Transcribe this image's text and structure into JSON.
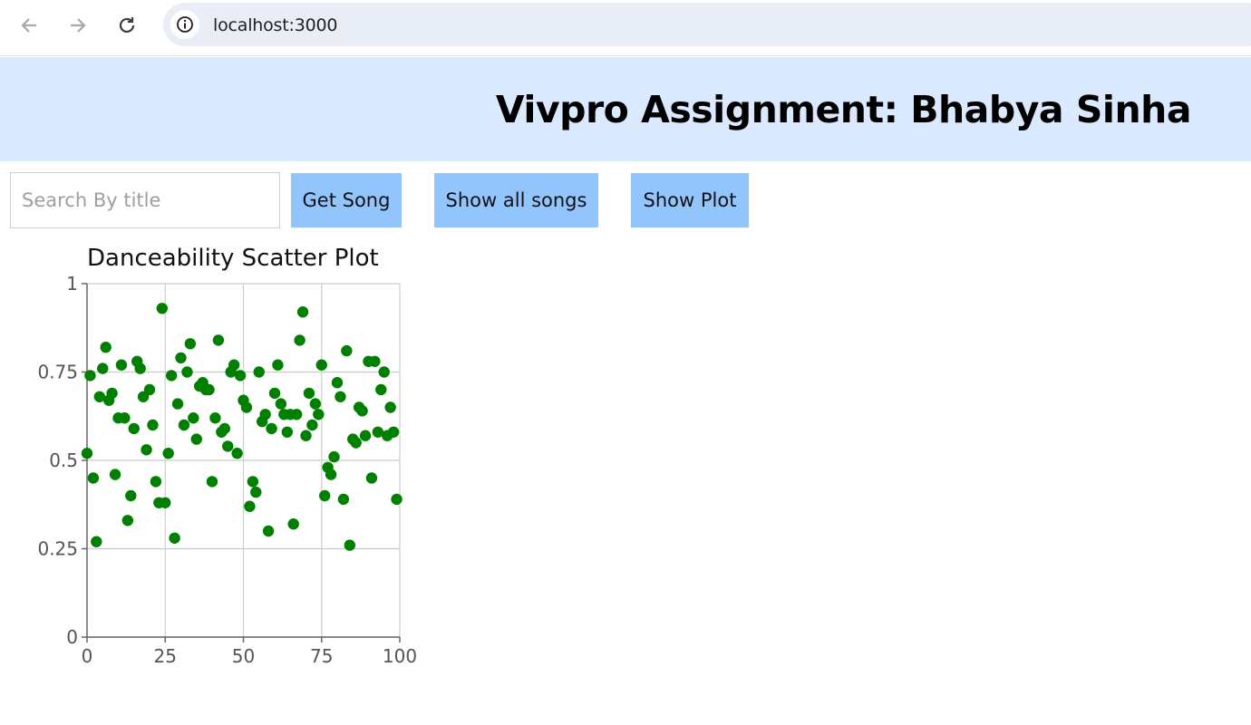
{
  "browser": {
    "url": "localhost:3000",
    "icons": {
      "back": "arrow-left-icon",
      "forward": "arrow-right-icon",
      "reload": "reload-icon",
      "site_info": "info-icon"
    }
  },
  "header": {
    "title": "Vivpro Assignment: Bhabya Sinha",
    "background": "#dae9fe"
  },
  "controls": {
    "search_placeholder": "Search By title",
    "search_value": "",
    "get_song_label": "Get Song",
    "show_all_label": "Show all songs",
    "show_plot_label": "Show Plot",
    "button_color": "#93c5fd"
  },
  "chart_data": {
    "type": "scatter",
    "title": "Danceability Scatter Plot",
    "xlabel": "",
    "ylabel": "",
    "xlim": [
      0,
      100
    ],
    "ylim": [
      0,
      1
    ],
    "x_ticks": [
      "0",
      "25",
      "50",
      "75",
      "100"
    ],
    "y_ticks": [
      "0",
      "0.25",
      "0.5",
      "0.75",
      "1"
    ],
    "grid": true,
    "point_color": "#008000",
    "x": [
      0,
      1,
      2,
      3,
      4,
      5,
      6,
      7,
      8,
      9,
      10,
      11,
      12,
      13,
      14,
      15,
      16,
      17,
      18,
      19,
      20,
      21,
      22,
      23,
      24,
      25,
      26,
      27,
      28,
      29,
      30,
      31,
      32,
      33,
      34,
      35,
      36,
      37,
      38,
      39,
      40,
      41,
      42,
      43,
      44,
      45,
      46,
      47,
      48,
      49,
      50,
      51,
      52,
      53,
      54,
      55,
      56,
      57,
      58,
      59,
      60,
      61,
      62,
      63,
      64,
      65,
      66,
      67,
      68,
      69,
      70,
      71,
      72,
      73,
      74,
      75,
      76,
      77,
      78,
      79,
      80,
      81,
      82,
      83,
      84,
      85,
      86,
      87,
      88,
      89,
      90,
      91,
      92,
      93,
      94,
      95,
      96,
      97,
      98,
      99
    ],
    "y": [
      0.52,
      0.74,
      0.45,
      0.27,
      0.68,
      0.76,
      0.82,
      0.67,
      0.69,
      0.46,
      0.62,
      0.77,
      0.62,
      0.33,
      0.4,
      0.59,
      0.78,
      0.76,
      0.68,
      0.53,
      0.7,
      0.6,
      0.44,
      0.38,
      0.93,
      0.38,
      0.52,
      0.74,
      0.28,
      0.66,
      0.79,
      0.6,
      0.75,
      0.83,
      0.62,
      0.56,
      0.71,
      0.72,
      0.7,
      0.7,
      0.44,
      0.62,
      0.84,
      0.58,
      0.59,
      0.54,
      0.75,
      0.77,
      0.52,
      0.74,
      0.67,
      0.65,
      0.37,
      0.44,
      0.41,
      0.75,
      0.61,
      0.63,
      0.3,
      0.59,
      0.69,
      0.77,
      0.66,
      0.63,
      0.58,
      0.63,
      0.32,
      0.63,
      0.84,
      0.92,
      0.57,
      0.69,
      0.6,
      0.66,
      0.63,
      0.77,
      0.4,
      0.48,
      0.46,
      0.51,
      0.72,
      0.68,
      0.39,
      0.81,
      0.26,
      0.56,
      0.55,
      0.65,
      0.64,
      0.57,
      0.78,
      0.45,
      0.78,
      0.58,
      0.7,
      0.75,
      0.57,
      0.65,
      0.58,
      0.39
    ]
  }
}
